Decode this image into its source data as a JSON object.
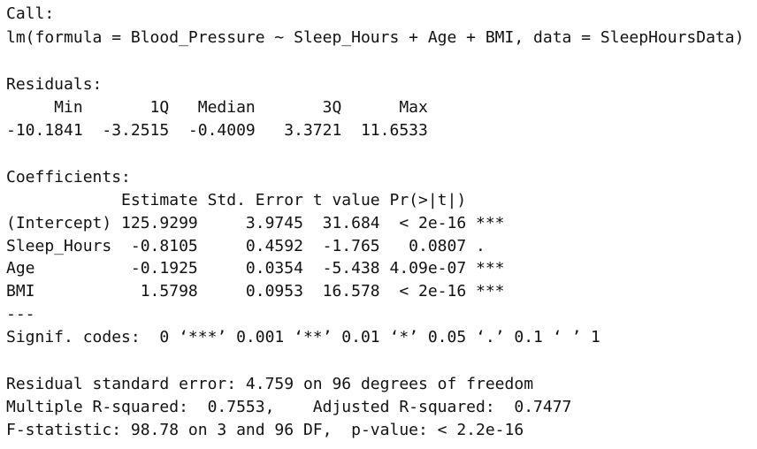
{
  "output": {
    "lines": [
      "Call:",
      "lm(formula = Blood_Pressure ~ Sleep_Hours + Age + BMI, data = SleepHoursData)",
      "",
      "Residuals:",
      "     Min       1Q   Median       3Q      Max ",
      "-10.1841  -3.2515  -0.4009   3.3721  11.6533 ",
      "",
      "Coefficients:",
      "            Estimate Std. Error t value Pr(>|t|)    ",
      "(Intercept) 125.9299     3.9745  31.684  < 2e-16 ***",
      "Sleep_Hours  -0.8105     0.4592  -1.765   0.0807 .  ",
      "Age          -0.1925     0.0354  -5.438 4.09e-07 ***",
      "BMI           1.5798     0.0953  16.578  < 2e-16 ***",
      "---",
      "Signif. codes:  0 ‘***’ 0.001 ‘**’ 0.01 ‘*’ 0.05 ‘.’ 0.1 ‘ ’ 1",
      "",
      "Residual standard error: 4.759 on 96 degrees of freedom",
      "Multiple R-squared:  0.7553,\tAdjusted R-squared:  0.7477 ",
      "F-statistic: 98.78 on 3 and 96 DF,  p-value: < 2.2e-16"
    ]
  }
}
